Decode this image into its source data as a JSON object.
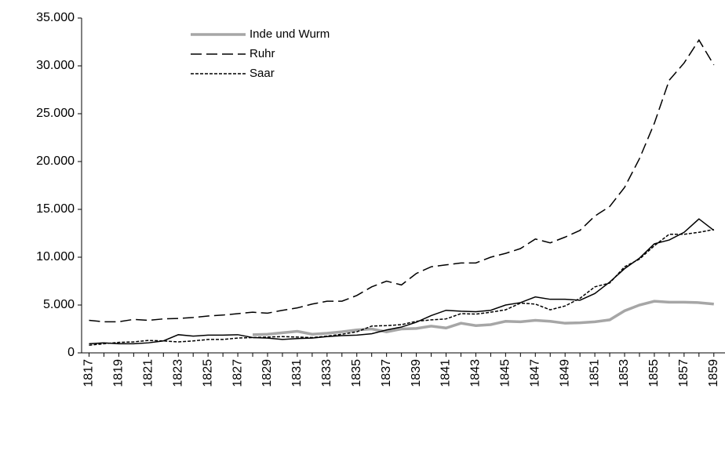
{
  "chart_data": {
    "type": "line",
    "x": [
      1817,
      1818,
      1819,
      1820,
      1821,
      1822,
      1823,
      1824,
      1825,
      1826,
      1827,
      1828,
      1829,
      1830,
      1831,
      1832,
      1833,
      1834,
      1835,
      1836,
      1837,
      1838,
      1839,
      1840,
      1841,
      1842,
      1843,
      1844,
      1845,
      1846,
      1847,
      1848,
      1849,
      1850,
      1851,
      1852,
      1853,
      1854,
      1855,
      1856,
      1857,
      1858,
      1859
    ],
    "series": [
      {
        "name": "Inde und Wurm",
        "color": "#a6a6a6",
        "dash": "solid",
        "width": 3.5,
        "values": [
          null,
          null,
          null,
          null,
          null,
          null,
          null,
          null,
          null,
          null,
          null,
          1900,
          1950,
          2100,
          2250,
          1950,
          2050,
          2200,
          2400,
          2500,
          2200,
          2500,
          2550,
          2800,
          2600,
          3100,
          2850,
          2950,
          3300,
          3250,
          3400,
          3300,
          3100,
          3150,
          3250,
          3450,
          4400,
          5000,
          5400,
          5300,
          5300,
          5250,
          5100
        ]
      },
      {
        "name": "Ruhr",
        "color": "#000000",
        "dash": "dashed",
        "width": 1.5,
        "values": [
          3400,
          3250,
          3250,
          3500,
          3400,
          3550,
          3600,
          3700,
          3850,
          3950,
          4100,
          4250,
          4150,
          4450,
          4700,
          5100,
          5400,
          5400,
          6000,
          6900,
          7500,
          7100,
          8300,
          9000,
          9200,
          9400,
          9400,
          10000,
          10400,
          10900,
          11900,
          11500,
          12100,
          12800,
          14300,
          15300,
          17300,
          20300,
          24000,
          28500,
          30300,
          32700,
          30100
        ]
      },
      {
        "name": "Saar",
        "color": "#000000",
        "dash": "dotted",
        "width": 1.5,
        "values": [
          800,
          950,
          1100,
          1150,
          1300,
          1250,
          1150,
          1250,
          1400,
          1400,
          1550,
          1600,
          1650,
          1700,
          1650,
          1600,
          1750,
          1950,
          2200,
          2800,
          2850,
          2950,
          3300,
          3450,
          3550,
          4100,
          4050,
          4250,
          4500,
          5200,
          5100,
          4500,
          4900,
          5700,
          6900,
          7300,
          9000,
          9800,
          11200,
          12400,
          12400,
          12600,
          12900
        ]
      },
      {
        "color": "#000000",
        "dash": "solid",
        "width": 1.5,
        "values": [
          950,
          1050,
          950,
          950,
          1050,
          1250,
          1900,
          1750,
          1850,
          1850,
          1900,
          1600,
          1550,
          1400,
          1500,
          1550,
          1700,
          1800,
          1850,
          2000,
          2400,
          2700,
          3200,
          3900,
          4450,
          4350,
          4300,
          4450,
          5000,
          5250,
          5850,
          5600,
          5600,
          5500,
          6200,
          7400,
          8800,
          9900,
          11400,
          11800,
          12600,
          14000,
          12800
        ]
      }
    ],
    "xlim": [
      1816.5,
      1859.75
    ],
    "xticks": [
      1817,
      1819,
      1821,
      1823,
      1825,
      1827,
      1829,
      1831,
      1833,
      1835,
      1837,
      1839,
      1841,
      1843,
      1845,
      1847,
      1849,
      1851,
      1853,
      1855,
      1857,
      1859
    ],
    "ylim": [
      0,
      35000
    ],
    "yticks": [
      0,
      {
        "value": 5000,
        "label": "5.000"
      },
      {
        "value": 10000,
        "label": "10.000"
      },
      {
        "value": 15000,
        "label": "15.000"
      },
      {
        "value": 20000,
        "label": "20.000"
      },
      {
        "value": 25000,
        "label": "25.000"
      },
      {
        "value": 30000,
        "label": "30.000"
      },
      {
        "value": 35000,
        "label": "35.000"
      }
    ],
    "legend": "top-left",
    "grid": false
  }
}
